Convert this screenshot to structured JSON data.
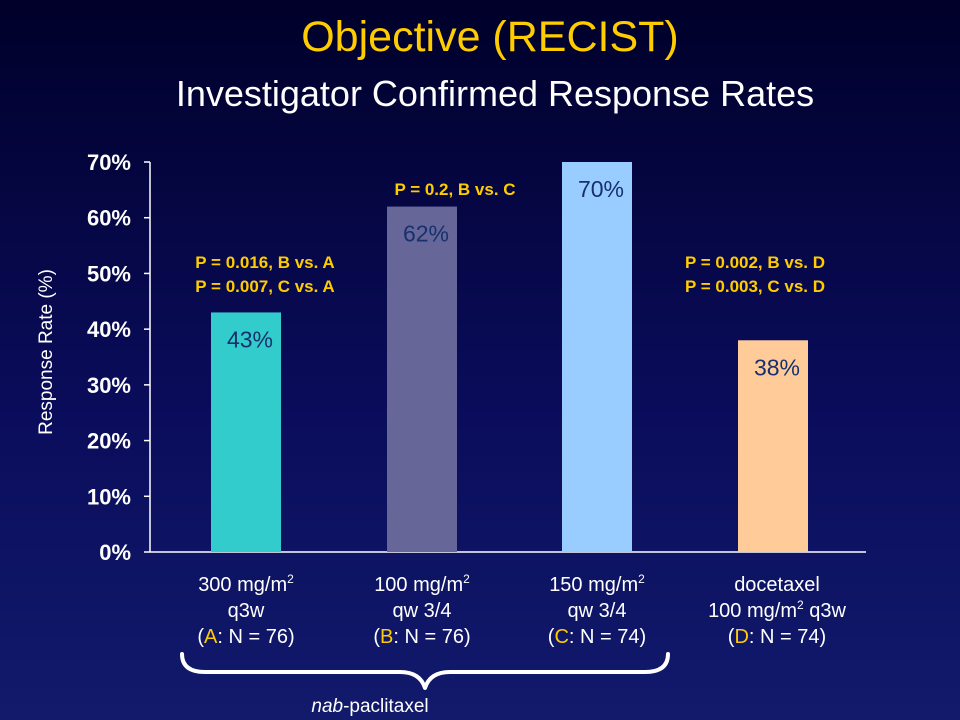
{
  "header": {
    "title": "Objective (RECIST)",
    "subtitle": "Investigator Confirmed Response Rates"
  },
  "chart_data": {
    "type": "bar",
    "ylabel": "Response Rate (%)",
    "ylim": [
      0,
      70
    ],
    "yticks": [
      "0%",
      "10%",
      "20%",
      "30%",
      "40%",
      "50%",
      "60%",
      "70%"
    ],
    "grid": false,
    "categories": [
      {
        "lines": [
          [
            {
              "t": "300 mg/m"
            },
            {
              "t": "2",
              "sup": true
            }
          ],
          [
            {
              "t": "q3w"
            }
          ],
          [
            {
              "t": "("
            },
            {
              "t": "A",
              "hl": true
            },
            {
              "t": ": N = 76)"
            }
          ]
        ]
      },
      {
        "lines": [
          [
            {
              "t": "100 mg/m"
            },
            {
              "t": "2",
              "sup": true
            }
          ],
          [
            {
              "t": "qw 3/4"
            }
          ],
          [
            {
              "t": "("
            },
            {
              "t": "B",
              "hl": true
            },
            {
              "t": ": N = 76)"
            }
          ]
        ]
      },
      {
        "lines": [
          [
            {
              "t": "150 mg/m"
            },
            {
              "t": "2",
              "sup": true
            }
          ],
          [
            {
              "t": "qw 3/4"
            }
          ],
          [
            {
              "t": "("
            },
            {
              "t": "C",
              "hl": true
            },
            {
              "t": ": N = 74)"
            }
          ]
        ]
      },
      {
        "lines": [
          [
            {
              "t": "docetaxel"
            }
          ],
          [
            {
              "t": "100 mg/m"
            },
            {
              "t": "2",
              "sup": true
            },
            {
              "t": " q3w"
            }
          ],
          [
            {
              "t": "("
            },
            {
              "t": "D",
              "hl": true
            },
            {
              "t": ": N = 74)"
            }
          ]
        ]
      }
    ],
    "values": [
      43,
      62,
      70,
      38
    ],
    "data_labels": [
      "43%",
      "62%",
      "70%",
      "38%"
    ],
    "colors": [
      "#33cccc",
      "#666699",
      "#99ccff",
      "#ffcc99"
    ],
    "annotations": [
      {
        "id": "ab",
        "lines": [
          "P = 0.016, B vs. A",
          "P = 0.007, C vs. A"
        ]
      },
      {
        "id": "bc",
        "lines": [
          "P = 0.2, B vs. C"
        ]
      },
      {
        "id": "bd",
        "lines": [
          "P = 0.002, B vs. D",
          "P = 0.003, C vs. D"
        ]
      }
    ],
    "bracket_label": "nab-paclitaxel",
    "bracket_label_italic": "nab"
  }
}
